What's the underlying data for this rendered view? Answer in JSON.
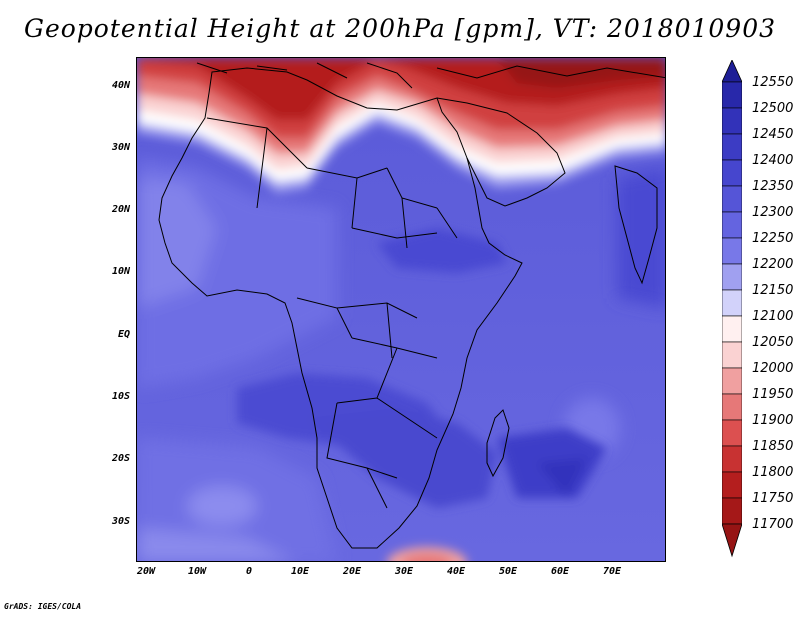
{
  "title": "Geopotential Height at 200hPa [gpm], VT: 2018010903",
  "credit": "GrADS: IGES/COLA",
  "map": {
    "lat_labels": [
      "40N",
      "30N",
      "20N",
      "10N",
      "EQ",
      "10S",
      "20S",
      "30S"
    ],
    "lon_labels": [
      "20W",
      "10W",
      "0",
      "10E",
      "20E",
      "30E",
      "40E",
      "50E",
      "60E",
      "70E"
    ]
  },
  "colorbar": {
    "levels": [
      "12550",
      "12500",
      "12450",
      "12400",
      "12350",
      "12300",
      "12250",
      "12200",
      "12150",
      "12100",
      "12050",
      "12000",
      "11950",
      "11900",
      "11850",
      "11800",
      "11750",
      "11700"
    ],
    "colors": [
      "#1e1e96",
      "#2828aa",
      "#3232b9",
      "#3c3cc4",
      "#4646ce",
      "#5555d7",
      "#6464e0",
      "#7878e8",
      "#a0a0f0",
      "#d2d2fa",
      "#fff0f0",
      "#fad2d2",
      "#f0a0a0",
      "#e67878",
      "#dc5050",
      "#c83232",
      "#b41e1e",
      "#961414"
    ]
  }
}
